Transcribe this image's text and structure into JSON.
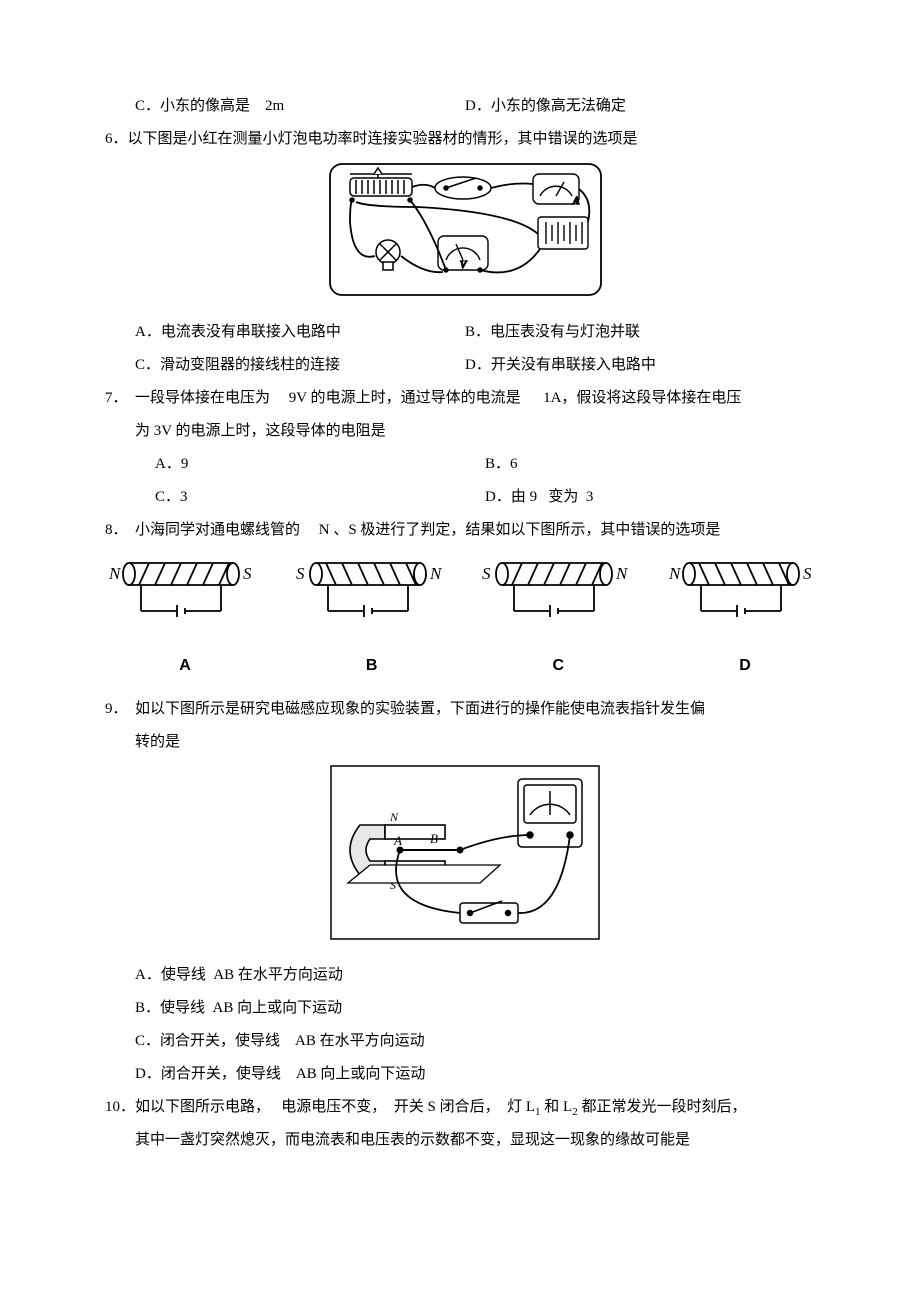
{
  "q5": {
    "opt_c": "C．小东的像高是    2m",
    "opt_d": "D．小东的像高无法确定"
  },
  "q6": {
    "stem": "6．以下图是小红在测量小灯泡电功率时连接实验器材的情形，其中错误的选项是",
    "opt_a": "A．电流表没有串联接入电路中",
    "opt_b": "B．电压表没有与灯泡并联",
    "opt_c": "C．滑动变阻器的接线柱的连接",
    "opt_d": "D．开关没有串联接入电路中",
    "fig": {
      "border": "#000000",
      "bg": "#ffffff"
    }
  },
  "q7": {
    "stem_l1": "一段导体接在电压为     9V 的电源上时，通过导体的电流是      1A，假设将这段导体接在电压",
    "stem_l2": "为 3V 的电源上时，这段导体的电阻是",
    "opt_a": "A．9",
    "opt_b": "B．6",
    "opt_c": "C．3",
    "opt_d": "D．由 9   变为  3"
  },
  "q8": {
    "stem": "小海同学对通电螺线管的     N 、S 极进行了判定，结果如以下图所示，其中错误的选项是",
    "solenoids": [
      {
        "left": "N",
        "right": "S",
        "slant": "right",
        "label": "A"
      },
      {
        "left": "S",
        "right": "N",
        "slant": "left",
        "label": "B"
      },
      {
        "left": "S",
        "right": "N",
        "slant": "right",
        "label": "C"
      },
      {
        "left": "N",
        "right": "S",
        "slant": "left",
        "label": "D"
      }
    ],
    "stroke": "#000000"
  },
  "q9": {
    "stem_l1": "如以下图所示是研究电磁感应现象的实验装置，下面进行的操作能使电流表指针发生偏",
    "stem_l2": "转的是",
    "opt_a": "A．使导线  AB 在水平方向运动",
    "opt_b": "B．使导线  AB 向上或向下运动",
    "opt_c": "C．闭合开关，使导线    AB 在水平方向运动",
    "opt_d": "D．闭合开关，使导线    AB 向上或向下运动"
  },
  "q10": {
    "stem_l1_a": "如以下图所示电路，   电源电压不变，  开关 S 闭合后，  灯 L",
    "stem_l1_b": " 和 L",
    "stem_l1_c": " 都正常发光一段时刻后，",
    "sub1": "1",
    "sub2": "2",
    "stem_l2": "其中一盏灯突然熄灭，而电流表和电压表的示数都不变，显现这一现象的缘故可能是"
  },
  "colors": {
    "text": "#000000",
    "bg": "#ffffff"
  }
}
